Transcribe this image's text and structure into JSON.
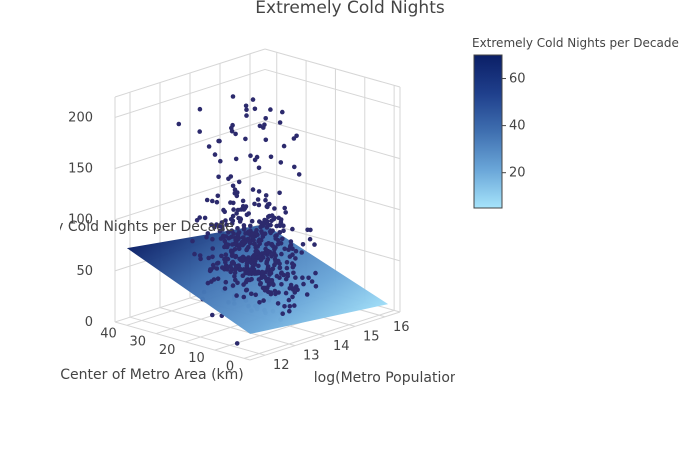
{
  "chart_data": {
    "type": "scatter3d",
    "title": "Extremely Cold Nights",
    "x_axis": {
      "label": "log(Metro Population)",
      "ticks": [
        12,
        13,
        14,
        15,
        16
      ],
      "range": [
        11.5,
        16.5
      ]
    },
    "y_axis": {
      "label": "Center of Metro Area (km)",
      "ticks": [
        0,
        10,
        20,
        30,
        40
      ],
      "range": [
        -2,
        44
      ]
    },
    "z_axis": {
      "label": "Extremely Cold Nights per Decade",
      "ticks": [
        0,
        50,
        100,
        150,
        200
      ],
      "range": [
        0,
        220
      ]
    },
    "colorbar": {
      "title": "Extremely Cold Nights per Decade",
      "ticks": [
        20,
        40,
        60
      ],
      "range": [
        5,
        70
      ],
      "colorscale": [
        "#0b1f66",
        "#1f3f8c",
        "#3f6fb0",
        "#6aa6d8",
        "#a6e4fb"
      ]
    },
    "surface": {
      "description": "fitted regression plane",
      "corners": [
        {
          "x": 11.7,
          "y": 0,
          "z": 22,
          "color": "#6aa6d8"
        },
        {
          "x": 16.3,
          "y": 0,
          "z": 8,
          "color": "#a6e4fb"
        },
        {
          "x": 16.3,
          "y": 42,
          "z": 52,
          "color": "#3f6fb0"
        },
        {
          "x": 11.7,
          "y": 42,
          "z": 72,
          "color": "#0b1f66"
        }
      ]
    },
    "marker_color": "#2c2a6d",
    "grid": true
  }
}
